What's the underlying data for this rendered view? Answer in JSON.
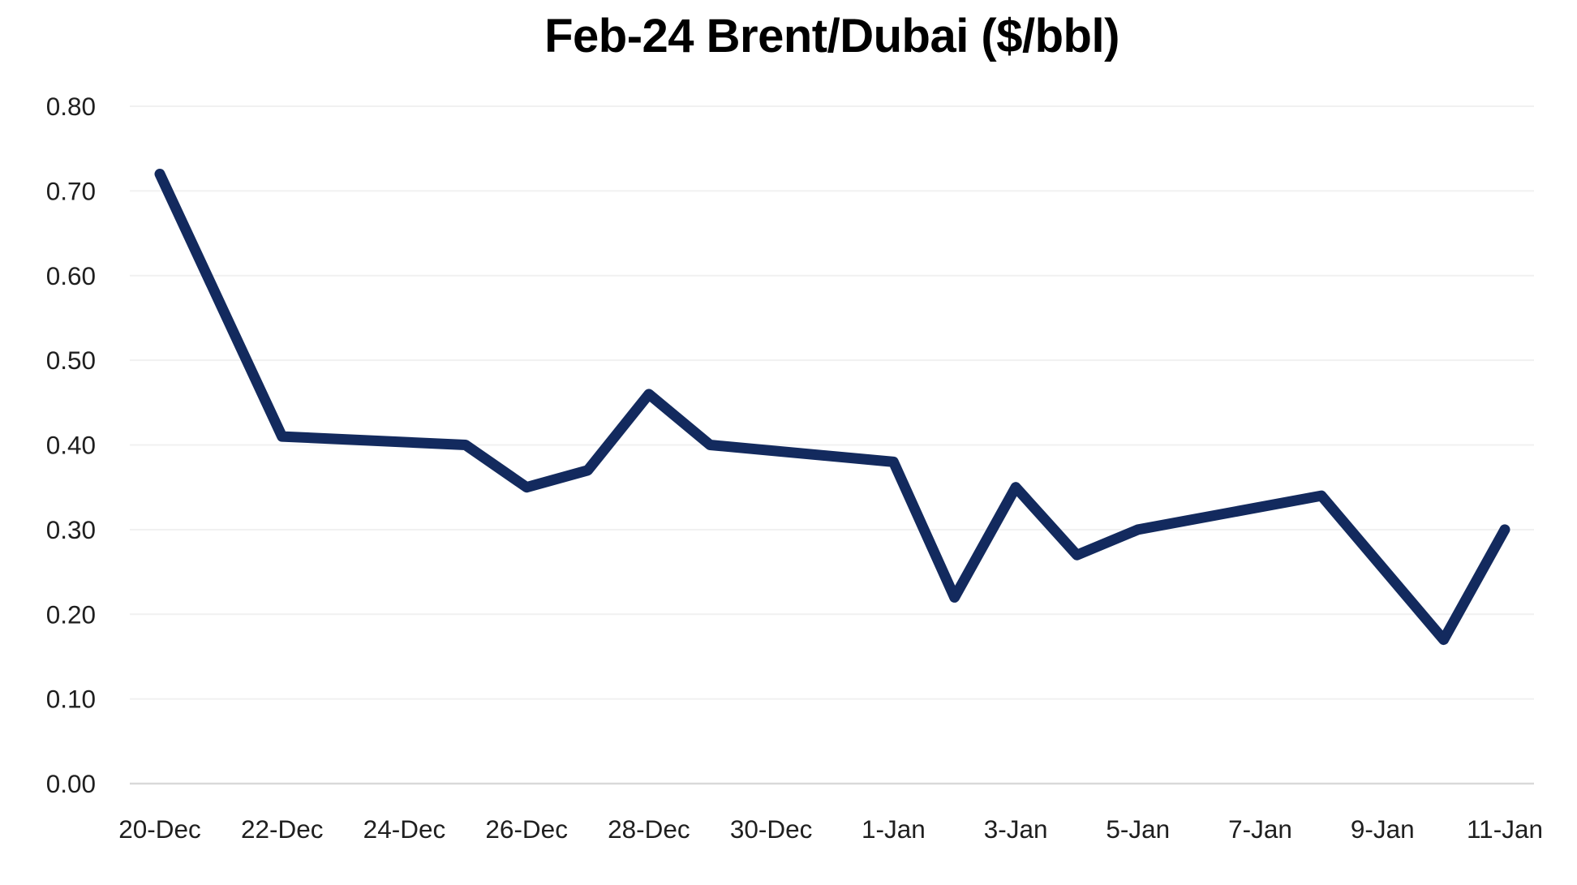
{
  "header": {
    "title": "Feb-24 Brent/Dubai ($/bbl)"
  },
  "chart_data": {
    "type": "line",
    "title": "Feb-24 Brent/Dubai ($/bbl)",
    "xlabel": "",
    "ylabel": "",
    "legend": "none",
    "grid": "horizontal",
    "ylim": [
      0,
      0.8
    ],
    "y_tick_step": 0.1,
    "series": [
      {
        "name": "Feb-24 Brent/Dubai spread",
        "color": "#132a5e",
        "points": [
          {
            "date": "20-Dec",
            "day": 0,
            "value": 0.72
          },
          {
            "date": "22-Dec",
            "day": 2,
            "value": 0.41
          },
          {
            "date": "25-Dec",
            "day": 5,
            "value": 0.4
          },
          {
            "date": "26-Dec",
            "day": 6,
            "value": 0.35
          },
          {
            "date": "27-Dec",
            "day": 7,
            "value": 0.37
          },
          {
            "date": "28-Dec",
            "day": 8,
            "value": 0.46
          },
          {
            "date": "29-Dec",
            "day": 9,
            "value": 0.4
          },
          {
            "date": "1-Jan",
            "day": 12,
            "value": 0.38
          },
          {
            "date": "2-Jan",
            "day": 13,
            "value": 0.22
          },
          {
            "date": "3-Jan",
            "day": 14,
            "value": 0.35
          },
          {
            "date": "4-Jan",
            "day": 15,
            "value": 0.27
          },
          {
            "date": "5-Jan",
            "day": 16,
            "value": 0.3
          },
          {
            "date": "8-Jan",
            "day": 19,
            "value": 0.34
          },
          {
            "date": "10-Jan",
            "day": 21,
            "value": 0.17
          },
          {
            "date": "11-Jan",
            "day": 22,
            "value": 0.3
          }
        ]
      }
    ],
    "x_ticks": [
      {
        "label": "20-Dec",
        "day": 0
      },
      {
        "label": "22-Dec",
        "day": 2
      },
      {
        "label": "24-Dec",
        "day": 4
      },
      {
        "label": "26-Dec",
        "day": 6
      },
      {
        "label": "28-Dec",
        "day": 8
      },
      {
        "label": "30-Dec",
        "day": 10
      },
      {
        "label": "1-Jan",
        "day": 12
      },
      {
        "label": "3-Jan",
        "day": 14
      },
      {
        "label": "5-Jan",
        "day": 16
      },
      {
        "label": "7-Jan",
        "day": 18
      },
      {
        "label": "9-Jan",
        "day": 20
      },
      {
        "label": "11-Jan",
        "day": 22
      }
    ],
    "y_ticks": [
      {
        "label": "0.00",
        "value": 0.0
      },
      {
        "label": "0.10",
        "value": 0.1
      },
      {
        "label": "0.20",
        "value": 0.2
      },
      {
        "label": "0.30",
        "value": 0.3
      },
      {
        "label": "0.40",
        "value": 0.4
      },
      {
        "label": "0.50",
        "value": 0.5
      },
      {
        "label": "0.60",
        "value": 0.6
      },
      {
        "label": "0.70",
        "value": 0.7
      },
      {
        "label": "0.80",
        "value": 0.8
      }
    ],
    "colors": {
      "line": "#132a5e",
      "gridline": "#f1f1f1",
      "baseline": "#d9d9d9",
      "tick_text": "#1f1f1f",
      "title_text": "#000000"
    }
  }
}
